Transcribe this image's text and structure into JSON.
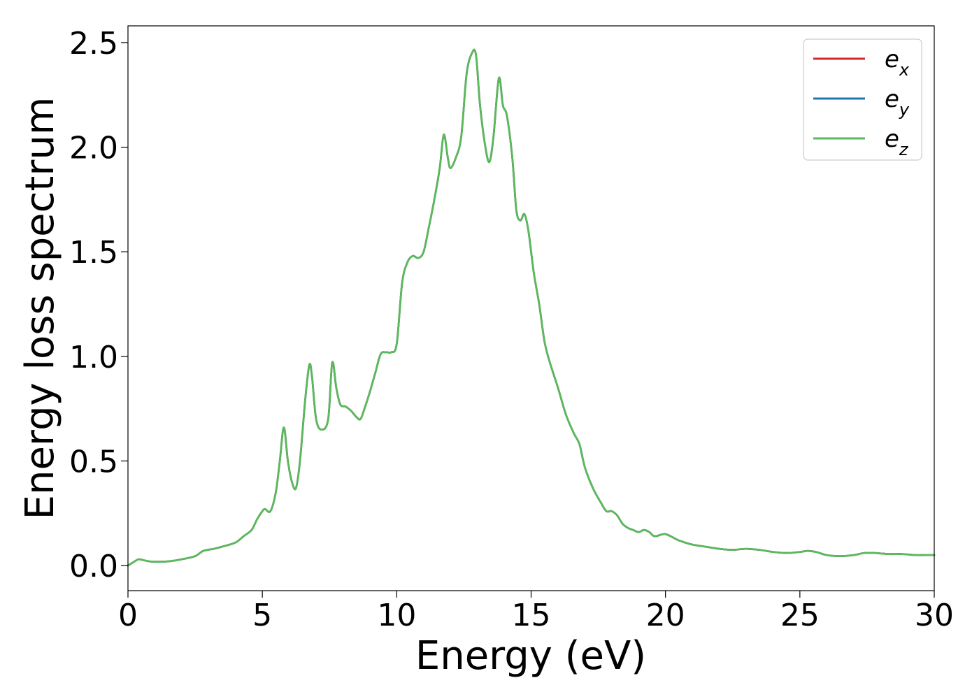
{
  "chart_data": {
    "type": "line",
    "title": "",
    "xlabel": "Energy (eV)",
    "ylabel": "Energy loss spectrum",
    "xlim": [
      0,
      30
    ],
    "ylim": [
      -0.12,
      2.58
    ],
    "xticks": [
      0,
      5,
      10,
      15,
      20,
      25,
      30
    ],
    "xtick_labels": [
      "0",
      "5",
      "10",
      "15",
      "20",
      "25",
      "30"
    ],
    "yticks": [
      0.0,
      0.5,
      1.0,
      1.5,
      2.0,
      2.5
    ],
    "ytick_labels": [
      "0.0",
      "0.5",
      "1.0",
      "1.5",
      "2.0",
      "2.5"
    ],
    "grid": false,
    "legend_position": "top-right",
    "colors": {
      "e_x": "#d62728",
      "e_y": "#1f77b4",
      "e_z": "#5cb85c"
    },
    "x": [
      0,
      0.25,
      0.4,
      0.6,
      0.8,
      1.0,
      1.5,
      2.0,
      2.5,
      2.8,
      3.2,
      3.5,
      4.0,
      4.3,
      4.6,
      4.8,
      5.0,
      5.1,
      5.3,
      5.5,
      5.65,
      5.8,
      5.95,
      6.1,
      6.25,
      6.4,
      6.6,
      6.75,
      6.85,
      7.0,
      7.2,
      7.45,
      7.6,
      7.75,
      7.9,
      8.1,
      8.3,
      8.5,
      8.65,
      8.8,
      9.0,
      9.2,
      9.4,
      9.6,
      9.8,
      10.0,
      10.2,
      10.4,
      10.6,
      10.8,
      11.0,
      11.2,
      11.4,
      11.6,
      11.75,
      11.9,
      12.0,
      12.2,
      12.4,
      12.6,
      12.8,
      12.95,
      13.1,
      13.3,
      13.45,
      13.6,
      13.8,
      13.95,
      14.1,
      14.3,
      14.45,
      14.6,
      14.75,
      14.9,
      15.1,
      15.3,
      15.5,
      15.7,
      16.0,
      16.3,
      16.6,
      16.8,
      17.0,
      17.3,
      17.6,
      17.8,
      18.0,
      18.2,
      18.4,
      18.6,
      18.8,
      19.0,
      19.2,
      19.4,
      19.6,
      20.0,
      20.5,
      21.0,
      21.5,
      22.0,
      22.5,
      23.0,
      23.5,
      24.0,
      24.5,
      25.0,
      25.3,
      25.6,
      26.0,
      26.5,
      27.0,
      27.4,
      27.8,
      28.3,
      28.8,
      29.3,
      29.7,
      30.0
    ],
    "series": [
      {
        "name": "e_x",
        "values": [
          0.0,
          0.02,
          0.03,
          0.025,
          0.02,
          0.018,
          0.02,
          0.03,
          0.045,
          0.07,
          0.08,
          0.09,
          0.11,
          0.14,
          0.17,
          0.22,
          0.26,
          0.27,
          0.26,
          0.35,
          0.5,
          0.66,
          0.5,
          0.4,
          0.37,
          0.5,
          0.8,
          0.96,
          0.9,
          0.7,
          0.65,
          0.7,
          0.97,
          0.85,
          0.77,
          0.76,
          0.74,
          0.71,
          0.7,
          0.75,
          0.83,
          0.92,
          1.01,
          1.02,
          1.02,
          1.06,
          1.35,
          1.45,
          1.48,
          1.47,
          1.5,
          1.62,
          1.75,
          1.9,
          2.06,
          1.95,
          1.9,
          1.95,
          2.05,
          2.35,
          2.45,
          2.44,
          2.2,
          2.0,
          1.93,
          2.05,
          2.33,
          2.2,
          2.15,
          1.95,
          1.7,
          1.65,
          1.68,
          1.6,
          1.4,
          1.25,
          1.07,
          0.97,
          0.85,
          0.72,
          0.63,
          0.58,
          0.47,
          0.37,
          0.3,
          0.26,
          0.26,
          0.24,
          0.2,
          0.18,
          0.17,
          0.16,
          0.17,
          0.16,
          0.14,
          0.15,
          0.12,
          0.1,
          0.09,
          0.08,
          0.075,
          0.08,
          0.075,
          0.065,
          0.06,
          0.065,
          0.07,
          0.065,
          0.05,
          0.045,
          0.05,
          0.06,
          0.06,
          0.055,
          0.055,
          0.05,
          0.05,
          0.05
        ]
      },
      {
        "name": "e_y",
        "values": [
          0.0,
          0.02,
          0.03,
          0.025,
          0.02,
          0.018,
          0.02,
          0.03,
          0.045,
          0.07,
          0.08,
          0.09,
          0.11,
          0.14,
          0.17,
          0.22,
          0.26,
          0.27,
          0.26,
          0.35,
          0.5,
          0.66,
          0.5,
          0.4,
          0.37,
          0.5,
          0.8,
          0.96,
          0.9,
          0.7,
          0.65,
          0.7,
          0.97,
          0.85,
          0.77,
          0.76,
          0.74,
          0.71,
          0.7,
          0.75,
          0.83,
          0.92,
          1.01,
          1.02,
          1.02,
          1.06,
          1.35,
          1.45,
          1.48,
          1.47,
          1.5,
          1.62,
          1.75,
          1.9,
          2.06,
          1.95,
          1.9,
          1.95,
          2.05,
          2.35,
          2.45,
          2.44,
          2.2,
          2.0,
          1.93,
          2.05,
          2.33,
          2.2,
          2.15,
          1.95,
          1.7,
          1.65,
          1.68,
          1.6,
          1.4,
          1.25,
          1.07,
          0.97,
          0.85,
          0.72,
          0.63,
          0.58,
          0.47,
          0.37,
          0.3,
          0.26,
          0.26,
          0.24,
          0.2,
          0.18,
          0.17,
          0.16,
          0.17,
          0.16,
          0.14,
          0.15,
          0.12,
          0.1,
          0.09,
          0.08,
          0.075,
          0.08,
          0.075,
          0.065,
          0.06,
          0.065,
          0.07,
          0.065,
          0.05,
          0.045,
          0.05,
          0.06,
          0.06,
          0.055,
          0.055,
          0.05,
          0.05,
          0.05
        ]
      },
      {
        "name": "e_z",
        "values": [
          0.0,
          0.02,
          0.03,
          0.025,
          0.02,
          0.018,
          0.02,
          0.03,
          0.045,
          0.07,
          0.08,
          0.09,
          0.11,
          0.14,
          0.17,
          0.22,
          0.26,
          0.27,
          0.26,
          0.35,
          0.5,
          0.66,
          0.5,
          0.4,
          0.37,
          0.5,
          0.8,
          0.96,
          0.9,
          0.7,
          0.65,
          0.7,
          0.97,
          0.85,
          0.77,
          0.76,
          0.74,
          0.71,
          0.7,
          0.75,
          0.83,
          0.92,
          1.01,
          1.02,
          1.02,
          1.06,
          1.35,
          1.45,
          1.48,
          1.47,
          1.5,
          1.62,
          1.75,
          1.9,
          2.06,
          1.95,
          1.9,
          1.95,
          2.05,
          2.35,
          2.45,
          2.44,
          2.2,
          2.0,
          1.93,
          2.05,
          2.33,
          2.2,
          2.15,
          1.95,
          1.7,
          1.65,
          1.68,
          1.6,
          1.4,
          1.25,
          1.07,
          0.97,
          0.85,
          0.72,
          0.63,
          0.58,
          0.47,
          0.37,
          0.3,
          0.26,
          0.26,
          0.24,
          0.2,
          0.18,
          0.17,
          0.16,
          0.17,
          0.16,
          0.14,
          0.15,
          0.12,
          0.1,
          0.09,
          0.08,
          0.075,
          0.08,
          0.075,
          0.065,
          0.06,
          0.065,
          0.07,
          0.065,
          0.05,
          0.045,
          0.05,
          0.06,
          0.06,
          0.055,
          0.055,
          0.05,
          0.05,
          0.05
        ]
      }
    ],
    "legend": [
      {
        "base": "e",
        "sub": "x"
      },
      {
        "base": "e",
        "sub": "y"
      },
      {
        "base": "e",
        "sub": "z"
      }
    ]
  }
}
